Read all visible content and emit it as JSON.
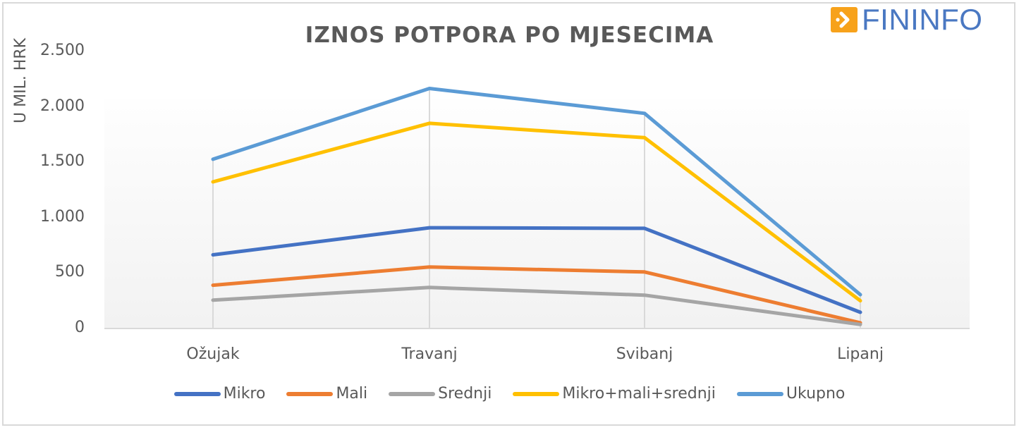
{
  "header": {
    "title": "IZNOS POTPORA PO MJESECIMA",
    "logo_text": "FININFO",
    "logo_icon": "arrow-right-icon",
    "logo_colors": {
      "box": "#F7A21B",
      "text": "#4A78C2"
    }
  },
  "axes": {
    "y_label": "U MIL. HRK",
    "y_ticks": [
      "2.500",
      "2.000",
      "1.500",
      "1.000",
      "500",
      "0"
    ],
    "x_ticks": [
      "Ožujak",
      "Travanj",
      "Svibanj",
      "Lipanj"
    ]
  },
  "legend": [
    {
      "label": "Mikro",
      "color": "#4472C4"
    },
    {
      "label": "Mali",
      "color": "#ED7D31"
    },
    {
      "label": "Srednji",
      "color": "#A5A5A5"
    },
    {
      "label": "Mikro+mali+srednji",
      "color": "#FFC000"
    },
    {
      "label": "Ukupno",
      "color": "#5B9BD5"
    }
  ],
  "chart_data": {
    "type": "line",
    "title": "IZNOS POTPORA PO MJESECIMA",
    "xlabel": "",
    "ylabel": "U MIL. HRK",
    "ylim": [
      0,
      2500
    ],
    "yticks": [
      0,
      500,
      1000,
      1500,
      2000,
      2500
    ],
    "categories": [
      "Ožujak",
      "Travanj",
      "Svibanj",
      "Lipanj"
    ],
    "series": [
      {
        "name": "Mikro",
        "color": "#4472C4",
        "values": [
          660,
          905,
          900,
          140
        ]
      },
      {
        "name": "Mali",
        "color": "#ED7D31",
        "values": [
          385,
          550,
          505,
          45
        ]
      },
      {
        "name": "Srednji",
        "color": "#A5A5A5",
        "values": [
          250,
          365,
          295,
          30
        ]
      },
      {
        "name": "Mikro+mali+srednji",
        "color": "#FFC000",
        "values": [
          1320,
          1850,
          1720,
          245
        ]
      },
      {
        "name": "Ukupno",
        "color": "#5B9BD5",
        "values": [
          1525,
          2165,
          1940,
          300
        ]
      }
    ],
    "grid": false,
    "vertical_drop_lines": true,
    "legend_position": "bottom"
  }
}
